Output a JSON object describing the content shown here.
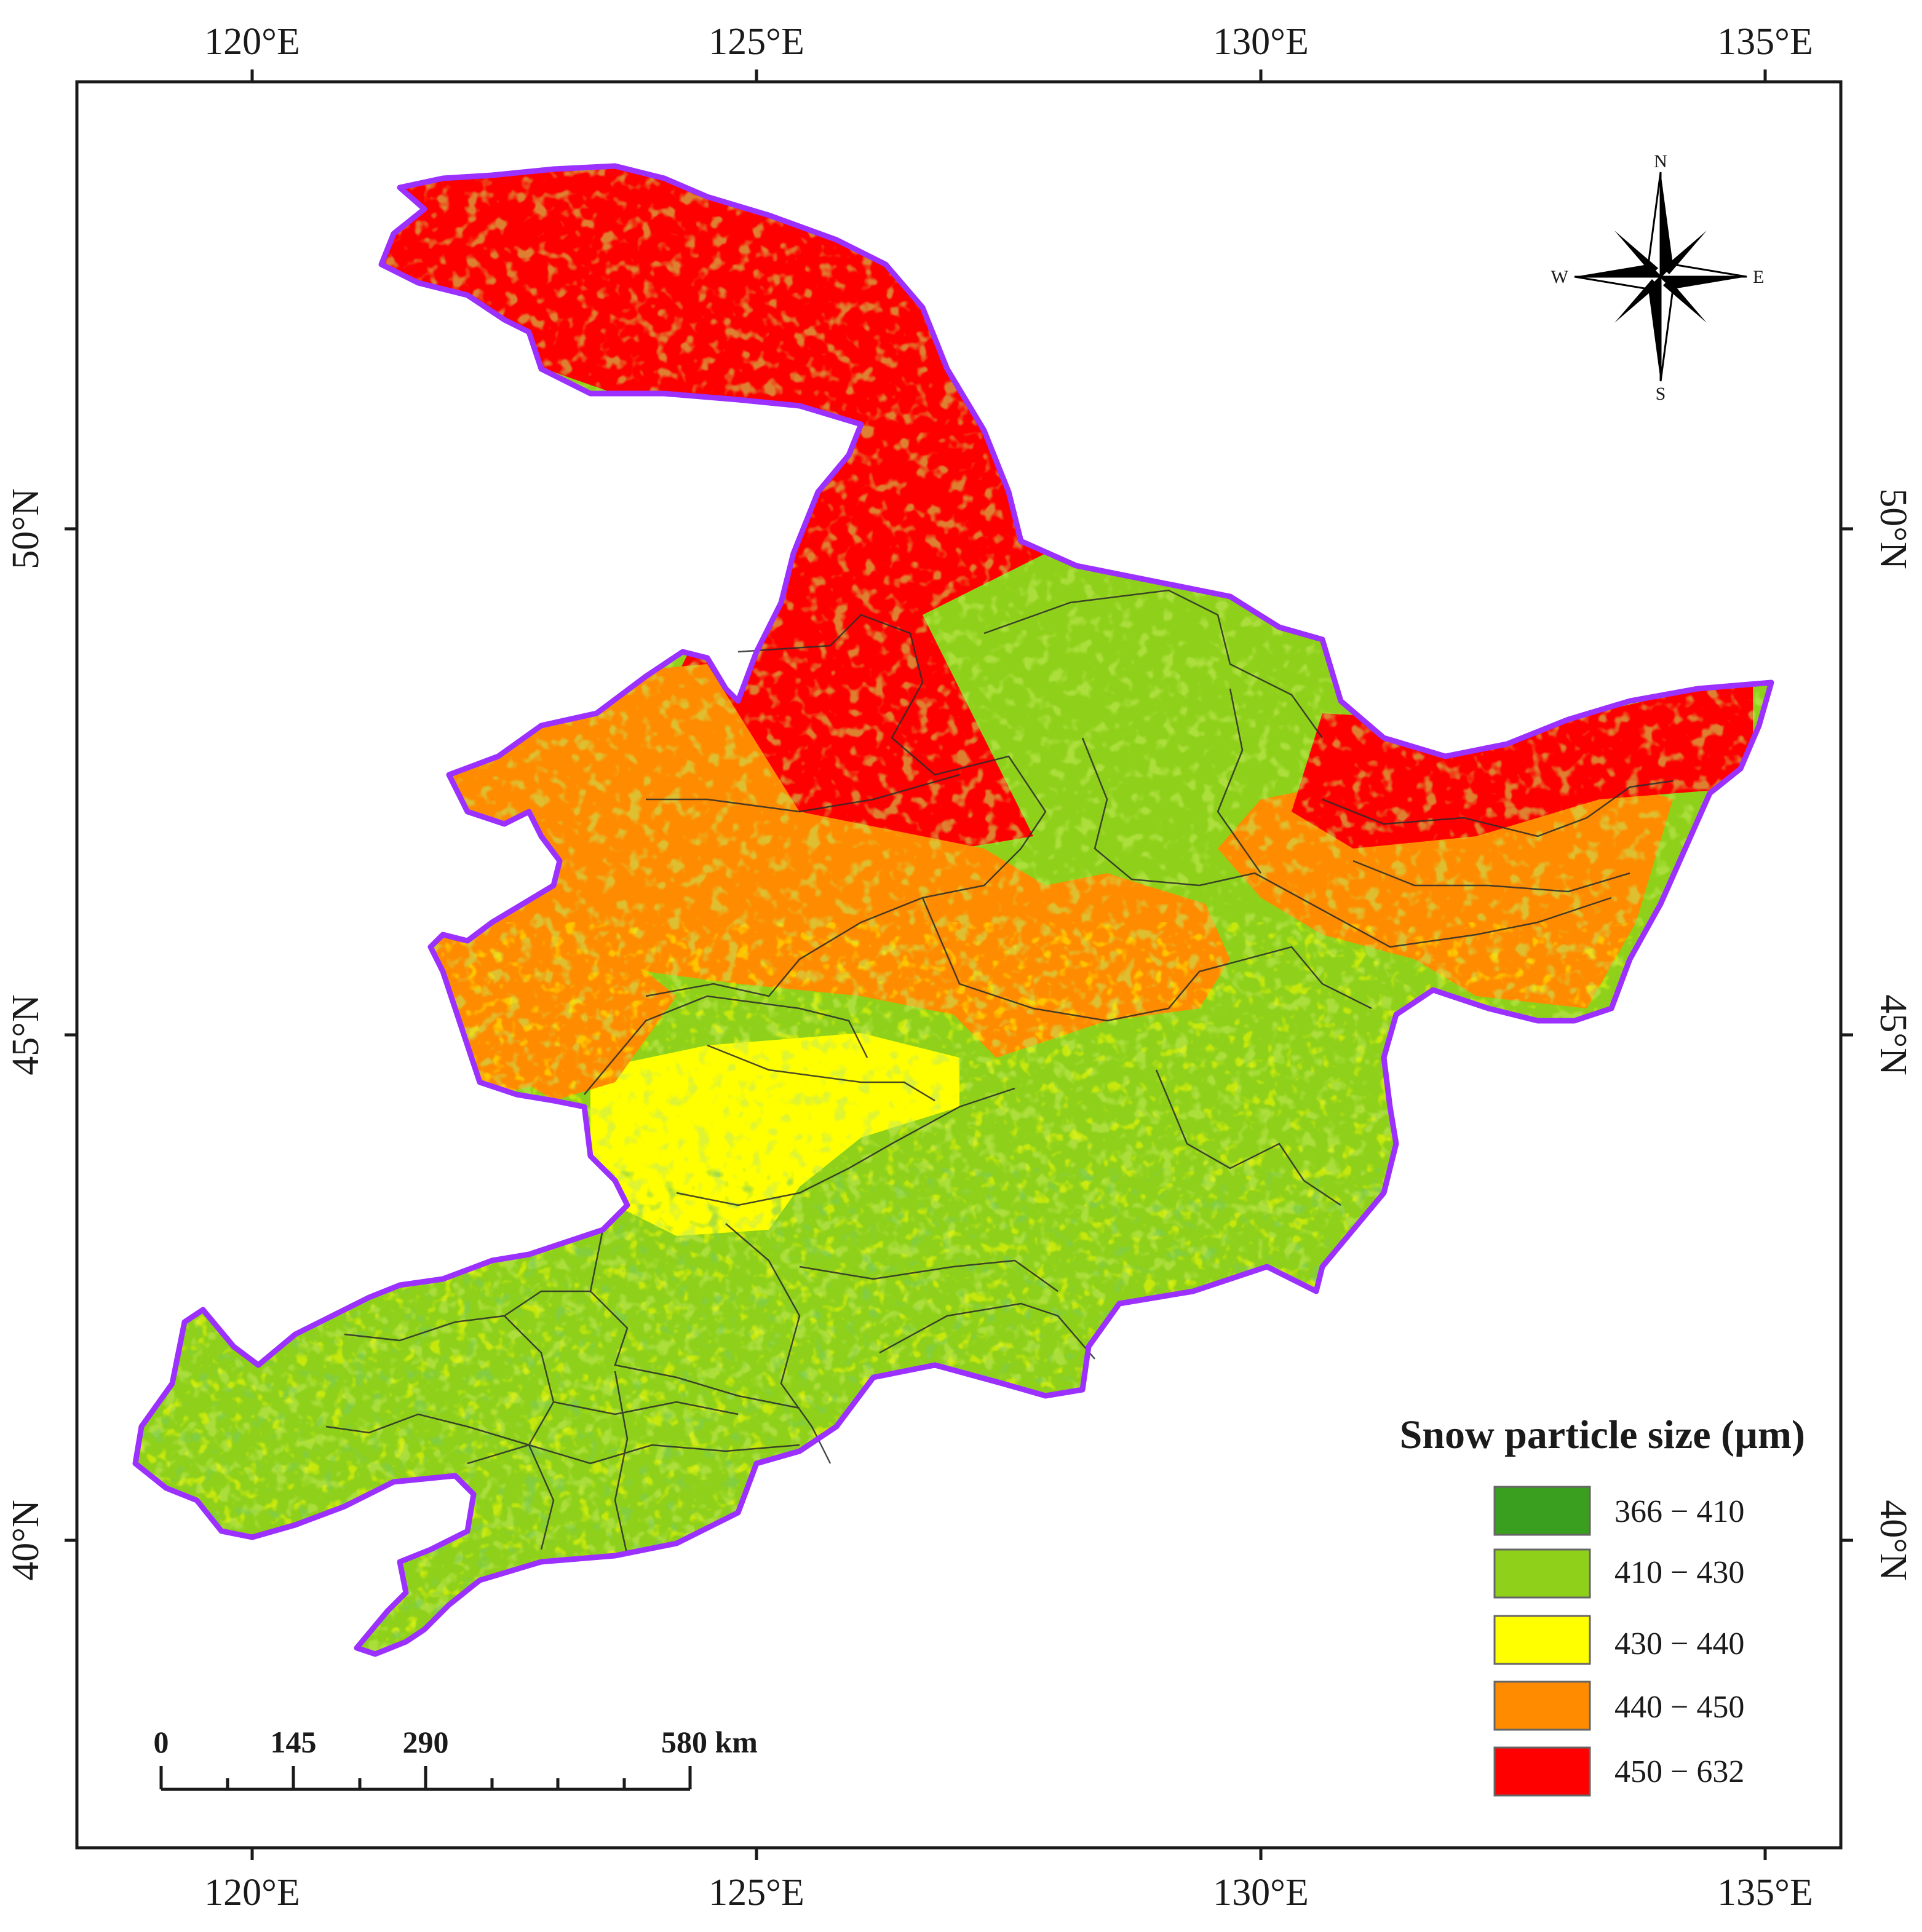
{
  "axes": {
    "top": [
      "120°E",
      "125°E",
      "130°E",
      "135°E"
    ],
    "bottom": [
      "120°E",
      "125°E",
      "130°E",
      "135°E"
    ],
    "left": [
      "50°N",
      "45°N",
      "40°N"
    ],
    "right": [
      "50°N",
      "45°N",
      "40°N"
    ]
  },
  "compass": {
    "n": "N",
    "s": "S",
    "e": "E",
    "w": "W"
  },
  "legend": {
    "title": "Snow particle size (µm)",
    "items": [
      {
        "label": "366 − 410",
        "color": "#3a9e1e"
      },
      {
        "label": "410 − 430",
        "color": "#8fd11a"
      },
      {
        "label": "430 − 440",
        "color": "#ffff00"
      },
      {
        "label": "440 − 450",
        "color": "#ff8c00"
      },
      {
        "label": "450 − 632",
        "color": "#ff0000"
      }
    ]
  },
  "scale_bar": {
    "labels": [
      "0",
      "145",
      "290",
      "580 km"
    ]
  },
  "boundary_color": "#9b30ff"
}
